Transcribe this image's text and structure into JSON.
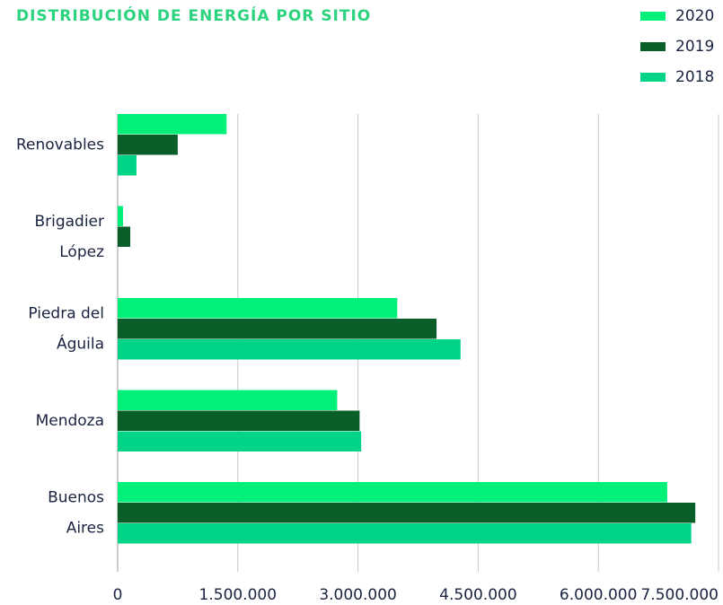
{
  "chart_data": {
    "type": "barh",
    "title": "DISTRIBUCIÓN DE ENERGÍA POR SITIO",
    "categories": [
      "Renovables",
      "Brigadier López",
      "Piedra del Águila",
      "Mendoza",
      "Buenos Aires"
    ],
    "series": [
      {
        "name": "2020",
        "color": "#00f07a",
        "values": [
          1360000,
          67000,
          3490000,
          2740000,
          6860000
        ]
      },
      {
        "name": "2019",
        "color": "#0a5e2a",
        "values": [
          750000,
          157000,
          3980000,
          3020000,
          7210000
        ]
      },
      {
        "name": "2018",
        "color": "#00d486",
        "values": [
          235000,
          0,
          4280000,
          3040000,
          7160000
        ]
      }
    ],
    "xlim": [
      0,
      7500000
    ],
    "xticks": [
      0,
      {
        "value": 1500000,
        "label": "1.500.000"
      },
      {
        "value": 3000000,
        "label": "3.000.000"
      },
      {
        "value": 4500000,
        "label": "4.500.000"
      },
      {
        "value": 6000000,
        "label": "6.000.000"
      },
      {
        "value": 7500000,
        "label": "7.500.000"
      }
    ],
    "grid": true,
    "legend": "top-right"
  }
}
